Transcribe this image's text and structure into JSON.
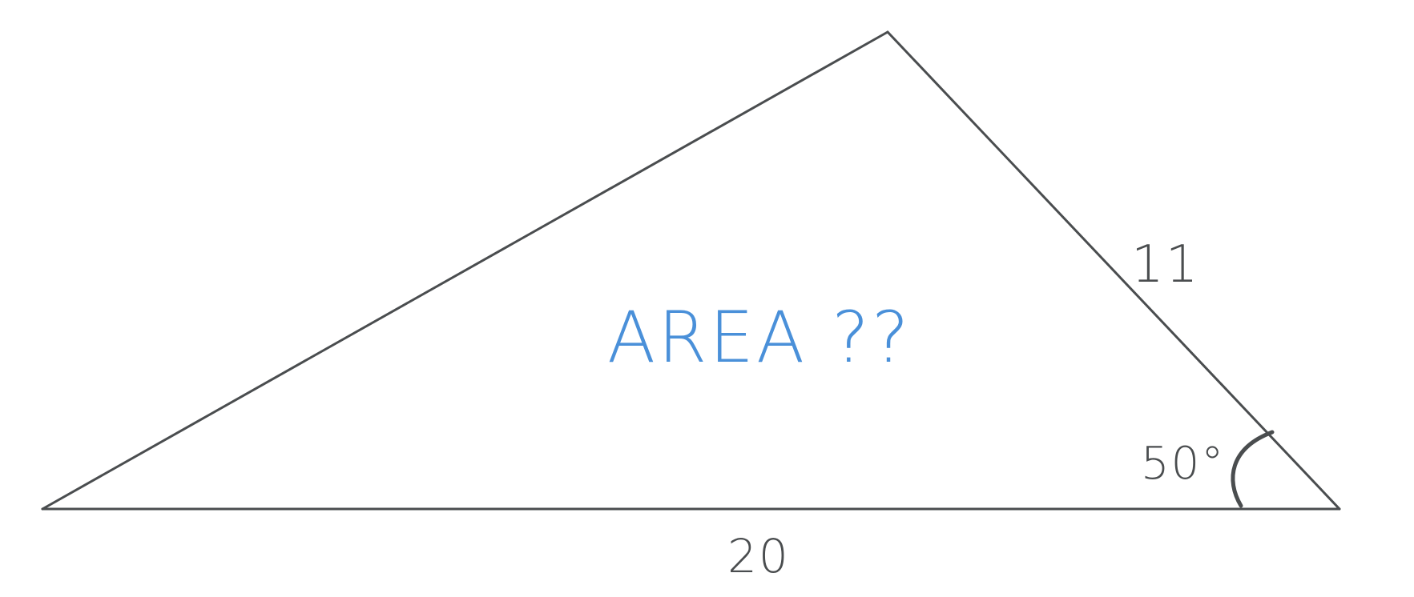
{
  "diagram": {
    "side_bottom": "20",
    "side_right": "11",
    "angle": "50°",
    "area_question": "AREA ??"
  },
  "colors": {
    "lines": "#4a4d4f",
    "area_text": "#4a90d9"
  }
}
